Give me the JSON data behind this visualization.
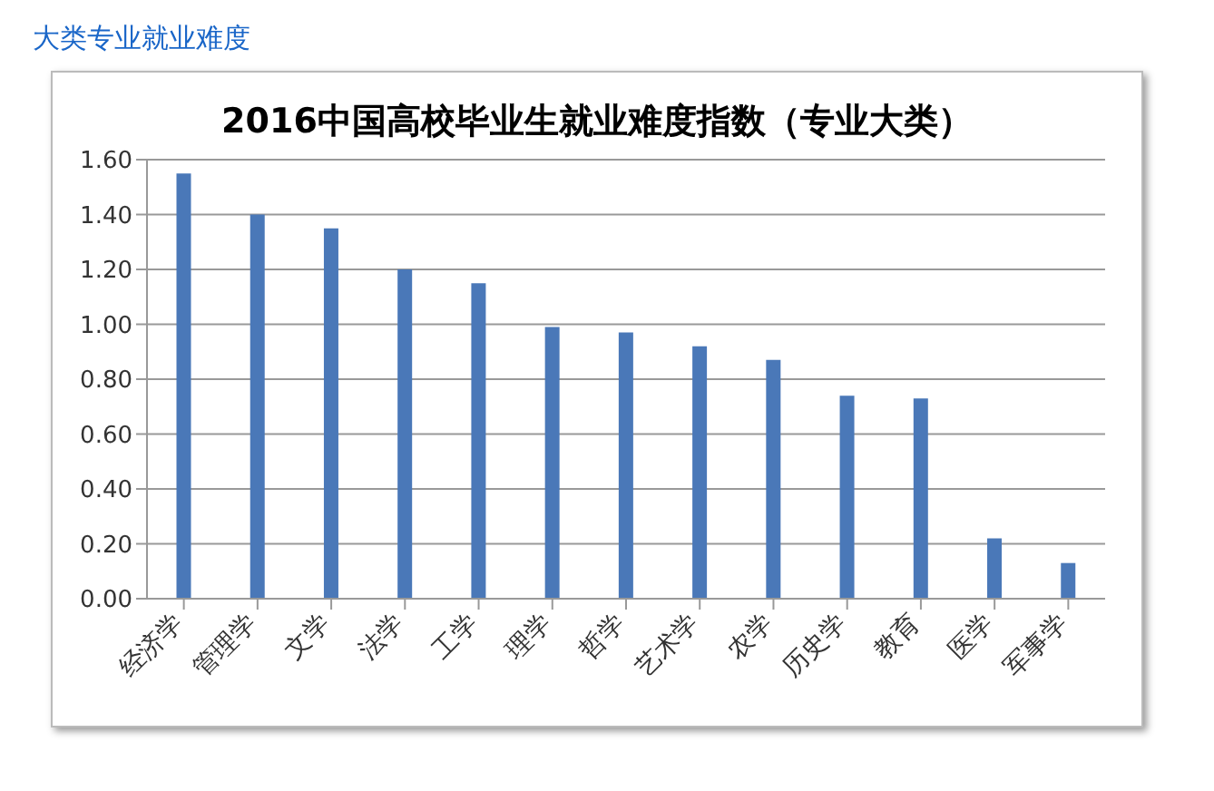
{
  "chart_data": {
    "type": "bar",
    "title": "2016中国高校毕业生就业难度指数（专业大类）",
    "annotations": [
      "大类专业就业难度"
    ],
    "categories": [
      "经济学",
      "管理学",
      "文学",
      "法学",
      "工学",
      "理学",
      "哲学",
      "艺术学",
      "农学",
      "历史学",
      "教育",
      "医学",
      "军事学"
    ],
    "values": [
      1.55,
      1.4,
      1.35,
      1.2,
      1.15,
      0.99,
      0.97,
      0.92,
      0.87,
      0.74,
      0.73,
      0.22,
      0.13
    ],
    "color": "#4a78b8",
    "ylim": [
      0,
      1.6
    ],
    "yticks": [
      {
        "value": 0,
        "label": "0.00"
      },
      {
        "value": 0.2,
        "label": "0.20"
      },
      {
        "value": 0.4,
        "label": "0.40"
      },
      {
        "value": 0.6,
        "label": "0.60"
      },
      {
        "value": 0.8,
        "label": "0.80"
      },
      {
        "value": 1,
        "label": "1.00"
      },
      {
        "value": 1.2,
        "label": "1.20"
      },
      {
        "value": 1.4,
        "label": "1.40"
      },
      {
        "value": 1.6,
        "label": "1.60"
      }
    ],
    "grid": "y"
  }
}
